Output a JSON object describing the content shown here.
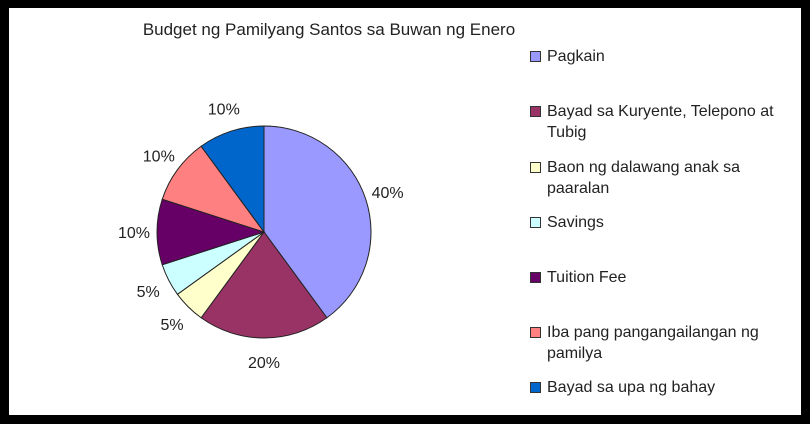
{
  "chart_data": {
    "type": "pie",
    "title": "Budget ng Pamilyang Santos sa Buwan ng Enero",
    "slices": [
      {
        "name": "Pagkain",
        "value": 40,
        "label": "40%",
        "color": "#9999ff"
      },
      {
        "name": "Bayad sa Kuryente, Telepono at Tubig",
        "value": 20,
        "label": "20%",
        "color": "#993366"
      },
      {
        "name": "Baon ng dalawang anak sa paaralan",
        "value": 5,
        "label": "5%",
        "color": "#ffffcc"
      },
      {
        "name": "Savings",
        "value": 5,
        "label": "5%",
        "color": "#ccffff"
      },
      {
        "name": "Tuition Fee",
        "value": 10,
        "label": "10%",
        "color": "#660066"
      },
      {
        "name": "Iba pang pangangailangan ng pamilya",
        "value": 10,
        "label": "10%",
        "color": "#ff8080"
      },
      {
        "name": "Bayad sa upa ng bahay",
        "value": 10,
        "label": "10%",
        "color": "#0066cc"
      }
    ],
    "legend": {
      "placement": "right",
      "entries": [
        "Pagkain",
        "Bayad sa Kuryente, Telepono at Tubig",
        "Baon ng dalawang anak sa paaralan",
        "Savings",
        "Tuition Fee",
        "Iba pang pangangailangan ng pamilya",
        "Bayad sa upa ng bahay"
      ]
    }
  }
}
